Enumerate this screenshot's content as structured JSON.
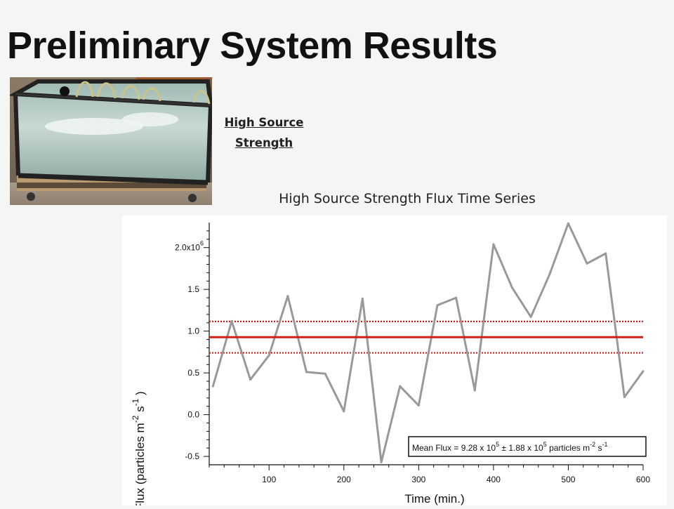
{
  "slide": {
    "title": "Preliminary System Results",
    "photo_caption_line1": "High Source",
    "photo_caption_line2": "Strength"
  },
  "chart_data": {
    "type": "line",
    "title": "High Source Strength Flux Time Series",
    "xlabel": "Time (min.)",
    "ylabel": "Flux (particles m-2 s-1)",
    "ylabel_parts": {
      "main": "Flux (particles m",
      "exp1": "-2",
      "mid": " s",
      "exp2": "-1",
      "end": " )"
    },
    "xlim": [
      20,
      600
    ],
    "ylim": [
      -0.6,
      2.3
    ],
    "y_multiplier_label": "x10",
    "y_multiplier_exp": "6",
    "xticks": [
      100,
      200,
      300,
      400,
      500,
      600
    ],
    "yticks": [
      -0.5,
      0.0,
      0.5,
      1.0,
      1.5,
      2.0
    ],
    "ytick_labels": [
      "-0.5",
      "0.0",
      "0.5",
      "1.0",
      "1.5",
      "2.0"
    ],
    "series": [
      {
        "x": [
          25,
          50,
          75,
          100,
          125,
          150,
          175,
          200,
          225,
          250,
          275,
          300,
          325,
          350,
          375,
          400,
          425,
          450,
          475,
          500,
          525,
          550,
          575,
          600
        ],
        "y": [
          0.34,
          1.12,
          0.42,
          0.71,
          1.42,
          0.51,
          0.49,
          0.04,
          1.39,
          -0.57,
          0.34,
          0.11,
          1.31,
          1.4,
          0.29,
          2.04,
          1.52,
          1.17,
          1.68,
          2.29,
          1.81,
          1.93,
          0.21,
          0.52
        ],
        "color": "#999999"
      }
    ],
    "mean_line": {
      "value": 0.928,
      "color": "#d0201a"
    },
    "uncertainty_band": {
      "upper": 1.116,
      "lower": 0.74,
      "color": "#d0201a"
    },
    "annotation": {
      "prefix": "Mean Flux = 9.28 x 10",
      "e1": "5",
      "mid": " ± 1.88 x 10",
      "e2": "5",
      "unit": " particles m",
      "e3": "-2",
      "s": " s",
      "e4": "-1"
    }
  }
}
